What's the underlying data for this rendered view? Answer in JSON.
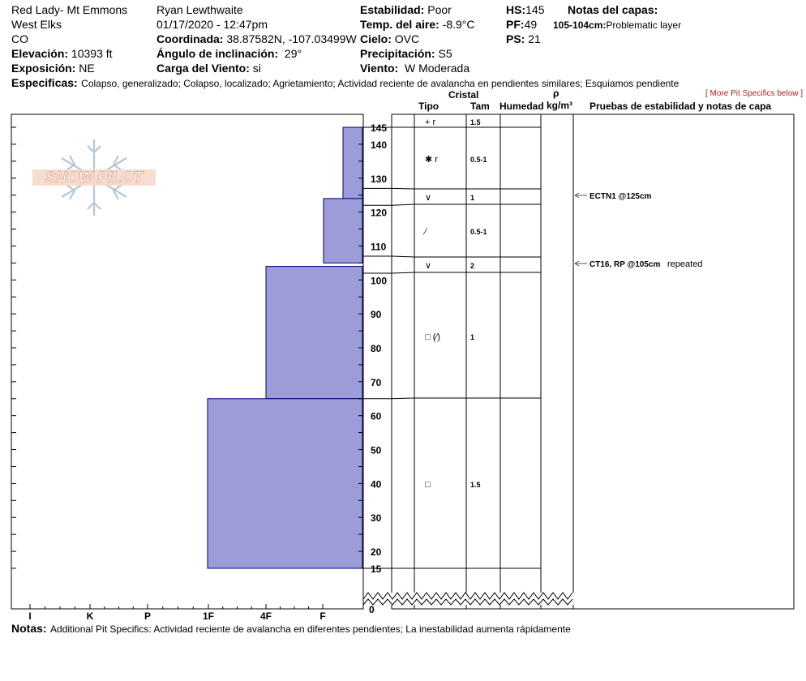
{
  "header": {
    "location": "Red Lady- Mt Emmons",
    "range": "West Elks",
    "state": "CO",
    "elevation_label": "Elevación:",
    "elevation": "10393 ft",
    "aspect_label": "Exposición:",
    "aspect": "NE",
    "observer": "Ryan Lewthwaite",
    "datetime": "01/17/2020 - 12:47pm",
    "coord_label": "Coordinada:",
    "coord": "38.87582N, -107.03499W",
    "slope_label": "Ángulo de inclinación:",
    "slope": "29°",
    "windload_label": "Carga del Viento:",
    "windload": "si",
    "stability_label": "Estabilidad:",
    "stability": "Poor",
    "airtemp_label": "Temp. del aire:",
    "airtemp": "-8.9°C",
    "sky_label": "Cielo:",
    "sky": "OVC",
    "precip_label": "Precipitación:",
    "precip": "S5",
    "wind_label": "Viento:",
    "wind": "W Moderada",
    "hs_label": "HS:",
    "hs": "145",
    "pf_label": "PF:",
    "pf": "49",
    "ps_label": "PS:",
    "ps": "21",
    "layer_notes_label": "Notas del capas:",
    "layer_note_depth": "105-104cm:",
    "layer_note_text": "Problematic layer",
    "specifics_label": "Especificas:",
    "specifics": "Colapso, generalizado; Colapso, localizado; Agrietamiento; Actividad reciente de avalancha en pendientes similares; Esquiamos pendiente",
    "more_specifics": "[ More Pit Specifics below ]"
  },
  "table_headers": {
    "cristal": "Cristal",
    "tipo": "Tipo",
    "tam": "Tam",
    "humedad": "Humedad",
    "rho": "ρ",
    "density_unit": "kg/m³",
    "tests": "Pruebas de estabilidad y notas de capa"
  },
  "logo_text": "SNOW PILOT",
  "footer": {
    "notes_label": "Notas:",
    "notes": "Additional Pit Specifics: Actividad reciente de avalancha en diferentes pendientes; La inestabilidad aumenta rápidamente"
  },
  "colors": {
    "hardness_fill": "#9c9cd8",
    "hardness_stroke": "#000080",
    "grid": "#000000",
    "test_arrow": "#555555"
  },
  "chart_data": {
    "type": "bar",
    "y_ticks": [
      15,
      20,
      30,
      40,
      50,
      60,
      70,
      80,
      90,
      100,
      110,
      120,
      130,
      140,
      145
    ],
    "y_zero_label": "0",
    "hardness_scale": [
      "I",
      "K",
      "P",
      "1F",
      "4F",
      "F"
    ],
    "hardness_layers": [
      {
        "top": 145,
        "bottom": 124,
        "hardness": "F"
      },
      {
        "top": 124,
        "bottom": 105,
        "hardness": "4F/1F"
      },
      {
        "top": 104,
        "bottom": 65,
        "hardness": "4F"
      },
      {
        "top": 65,
        "bottom": 15,
        "hardness": "1F"
      }
    ],
    "layers": [
      {
        "top": 145,
        "bottom": 145,
        "grain": "+ r",
        "size": "1.5"
      },
      {
        "top": 145,
        "bottom": 127,
        "grain": "✱ r",
        "size": "0.5-1"
      },
      {
        "top": 127,
        "bottom": 122,
        "grain": "∨",
        "size": "1"
      },
      {
        "top": 122,
        "bottom": 107,
        "grain": "∕",
        "size": "0.5-1"
      },
      {
        "top": 107,
        "bottom": 102,
        "grain": "∨",
        "size": "2"
      },
      {
        "top": 102,
        "bottom": 65,
        "grain": "□ (∕)",
        "size": "1"
      },
      {
        "top": 65,
        "bottom": 15,
        "grain": "□",
        "size": "1.5"
      }
    ],
    "tests": [
      {
        "depth": 125,
        "text": "ECTN1 @125cm",
        "note": ""
      },
      {
        "depth": 105,
        "text": "CT16, RP @105cm",
        "note": "repeated"
      }
    ]
  }
}
